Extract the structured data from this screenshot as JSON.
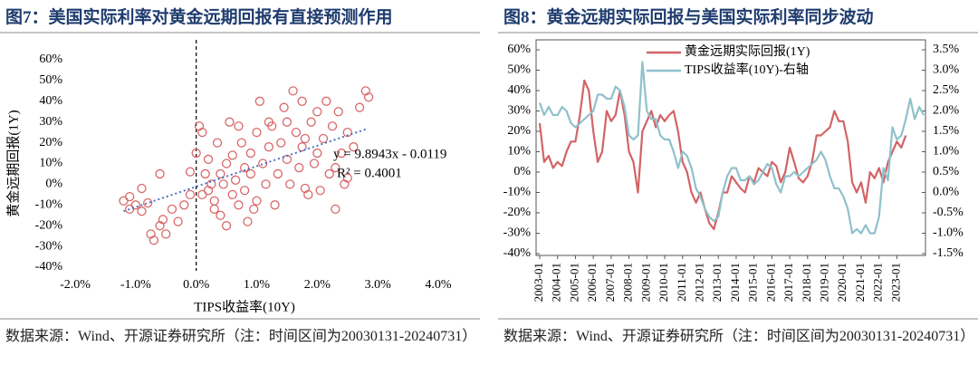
{
  "chart_data": [
    {
      "type": "scatter",
      "title": "图7：美国实际利率对黄金远期回报有直接预测作用",
      "xlabel": "TIPS收益率(10Y)",
      "ylabel": "黄金远期回报(1Y)",
      "color": "#d9686a",
      "x": [
        -1.2,
        -1.1,
        -1.0,
        -0.9,
        -1.1,
        -0.8,
        -0.7,
        -0.75,
        -0.6,
        -0.55,
        -0.5,
        -0.9,
        -0.6,
        -0.4,
        -0.2,
        -0.1,
        -0.1,
        0.0,
        0.05,
        0.1,
        0.15,
        0.2,
        0.2,
        0.3,
        0.3,
        0.35,
        0.4,
        0.4,
        0.45,
        0.5,
        0.5,
        0.55,
        0.6,
        0.6,
        0.65,
        0.7,
        0.75,
        0.8,
        0.8,
        0.85,
        0.9,
        0.9,
        1.0,
        1.0,
        1.05,
        1.1,
        1.15,
        1.2,
        1.25,
        1.3,
        1.35,
        1.4,
        1.5,
        1.5,
        1.55,
        1.6,
        1.65,
        1.7,
        1.75,
        1.75,
        1.8,
        1.85,
        1.9,
        1.95,
        2.0,
        2.0,
        2.05,
        2.1,
        2.15,
        2.2,
        2.25,
        2.3,
        2.35,
        2.4,
        2.45,
        2.5,
        2.5,
        2.6,
        2.7,
        2.8,
        2.85,
        -0.3,
        0.1,
        0.25,
        0.7,
        1.2,
        1.8,
        2.3,
        1.45,
        0.95
      ],
      "values": [
        -8,
        -12,
        -10,
        -13,
        -6,
        -9,
        -27,
        -24,
        -20,
        -17,
        -24,
        -2,
        5,
        -12,
        -10,
        -5,
        6,
        15,
        28,
        25,
        5,
        -3,
        12,
        -8,
        -12,
        20,
        5,
        -15,
        0,
        10,
        -20,
        30,
        14,
        -5,
        2,
        -10,
        20,
        8,
        -3,
        -18,
        15,
        5,
        25,
        -8,
        40,
        10,
        0,
        18,
        28,
        -10,
        5,
        20,
        12,
        30,
        0,
        45,
        25,
        8,
        40,
        18,
        22,
        -5,
        30,
        10,
        35,
        15,
        -3,
        22,
        40,
        5,
        28,
        -12,
        35,
        15,
        0,
        25,
        3,
        18,
        37,
        45,
        42,
        -18,
        -5,
        0,
        28,
        30,
        -2,
        8,
        37,
        -12
      ],
      "trendline": {
        "x": [
          -1.2,
          2.8
        ],
        "values": [
          -13,
          26.5
        ]
      },
      "annotations": [
        "y = 9.8943x - 0.0119",
        "R² = 0.4001"
      ],
      "xlim": [
        -2,
        4
      ],
      "xticks": [
        {
          "value": -2,
          "label": "-2.0%"
        },
        {
          "value": -1,
          "label": "-1.0%"
        },
        {
          "value": 0,
          "label": "0.0%"
        },
        {
          "value": 1,
          "label": "1.0%"
        },
        {
          "value": 2,
          "label": "2.0%"
        },
        {
          "value": 3,
          "label": "3.0%"
        },
        {
          "value": 4,
          "label": "4.0%"
        }
      ],
      "ylim": [
        -40,
        60
      ],
      "yticks": [
        {
          "value": -40,
          "label": "-40%"
        },
        {
          "value": -30,
          "label": "-30%"
        },
        {
          "value": -20,
          "label": "-20%"
        },
        {
          "value": -10,
          "label": "-10%"
        },
        {
          "value": 0,
          "label": "0%"
        },
        {
          "value": 10,
          "label": "10%"
        },
        {
          "value": 20,
          "label": "20%"
        },
        {
          "value": 30,
          "label": "30%"
        },
        {
          "value": 40,
          "label": "40%"
        },
        {
          "value": 50,
          "label": "50%"
        },
        {
          "value": 60,
          "label": "60%"
        }
      ],
      "source": "数据来源：Wind、开源证券研究所（注：时间区间为20030131-20240731）"
    },
    {
      "type": "line",
      "title": "图8：黄金远期实际回报与美国实际利率同步波动",
      "legend": "upper left",
      "x": [
        "2003-01",
        "2003-04",
        "2003-07",
        "2003-10",
        "2004-01",
        "2004-04",
        "2004-07",
        "2004-10",
        "2005-01",
        "2005-04",
        "2005-07",
        "2005-10",
        "2006-01",
        "2006-04",
        "2006-07",
        "2006-10",
        "2007-01",
        "2007-04",
        "2007-07",
        "2007-10",
        "2008-01",
        "2008-04",
        "2008-07",
        "2008-10",
        "2009-01",
        "2009-04",
        "2009-07",
        "2009-10",
        "2010-01",
        "2010-04",
        "2010-07",
        "2010-10",
        "2011-01",
        "2011-04",
        "2011-07",
        "2011-10",
        "2012-01",
        "2012-04",
        "2012-07",
        "2012-10",
        "2013-01",
        "2013-04",
        "2013-07",
        "2013-10",
        "2014-01",
        "2014-04",
        "2014-07",
        "2014-10",
        "2015-01",
        "2015-04",
        "2015-07",
        "2015-10",
        "2016-01",
        "2016-04",
        "2016-07",
        "2016-10",
        "2017-01",
        "2017-04",
        "2017-07",
        "2017-10",
        "2018-01",
        "2018-04",
        "2018-07",
        "2018-10",
        "2019-01",
        "2019-04",
        "2019-07",
        "2019-10",
        "2020-01",
        "2020-04",
        "2020-07",
        "2020-10",
        "2021-01",
        "2021-04",
        "2021-07",
        "2021-10",
        "2022-01",
        "2022-04",
        "2022-07",
        "2022-10",
        "2023-01",
        "2023-04",
        "2023-07",
        "2023-10",
        "2024-01",
        "2024-04",
        "2024-07"
      ],
      "series": [
        {
          "name": "黄金远期实际回报(1Y)",
          "color": "#d26466",
          "values": [
            24,
            5,
            8,
            2,
            5,
            3,
            10,
            15,
            15,
            28,
            45,
            40,
            20,
            5,
            10,
            30,
            25,
            28,
            40,
            28,
            10,
            5,
            -10,
            20,
            25,
            30,
            22,
            28,
            25,
            28,
            30,
            20,
            5,
            0,
            -10,
            -15,
            -10,
            -18,
            -25,
            -28,
            -20,
            -10,
            -10,
            -2,
            -5,
            -8,
            -10,
            -2,
            -5,
            2,
            0,
            -2,
            5,
            3,
            -5,
            0,
            12,
            5,
            -3,
            -5,
            -2,
            5,
            18,
            18,
            20,
            22,
            30,
            25,
            25,
            15,
            -5,
            -10,
            -5,
            -15,
            0,
            -3,
            2,
            -5,
            5,
            10,
            15,
            12,
            18,
            null,
            null,
            null,
            null
          ]
        },
        {
          "name": "TIPS收益率(10Y)-右轴",
          "color": "#8fc1cc",
          "axis": "y2",
          "values": [
            2.2,
            1.9,
            2.1,
            1.9,
            1.9,
            2.1,
            2.0,
            1.7,
            1.6,
            1.7,
            1.8,
            1.9,
            2.0,
            2.4,
            2.4,
            2.3,
            2.3,
            2.6,
            2.5,
            2.1,
            1.4,
            1.3,
            1.4,
            3.2,
            2.0,
            1.8,
            1.8,
            1.4,
            1.3,
            1.3,
            1.0,
            0.6,
            1.0,
            0.9,
            0.6,
            0.1,
            -0.1,
            -0.4,
            -0.6,
            -0.7,
            -0.6,
            0.0,
            0.4,
            0.6,
            0.6,
            0.3,
            0.3,
            0.4,
            0.2,
            0.3,
            0.5,
            0.7,
            0.6,
            0.2,
            0.0,
            0.4,
            0.4,
            0.5,
            0.4,
            0.5,
            0.6,
            0.7,
            0.8,
            1.0,
            0.8,
            0.4,
            0.1,
            0.1,
            -0.1,
            -0.4,
            -1.0,
            -0.9,
            -1.0,
            -0.8,
            -1.0,
            -1.0,
            -0.6,
            0.6,
            0.3,
            1.6,
            1.3,
            1.4,
            1.8,
            2.3,
            1.8,
            2.1,
            1.9
          ]
        }
      ],
      "xlim": [
        "2003-01",
        "2024-07"
      ],
      "xticks": [
        "2003-01",
        "2004-01",
        "2005-01",
        "2006-01",
        "2007-01",
        "2008-01",
        "2009-01",
        "2010-01",
        "2011-01",
        "2012-01",
        "2013-01",
        "2014-01",
        "2015-01",
        "2016-01",
        "2017-01",
        "2018-01",
        "2019-01",
        "2020-01",
        "2021-01",
        "2022-01",
        "2023-01"
      ],
      "ylim": [
        -40,
        60
      ],
      "yticks": [
        {
          "value": -40,
          "label": "-40%"
        },
        {
          "value": -30,
          "label": "-30%"
        },
        {
          "value": -20,
          "label": "-20%"
        },
        {
          "value": -10,
          "label": "-10%"
        },
        {
          "value": 0,
          "label": "0%"
        },
        {
          "value": 10,
          "label": "10%"
        },
        {
          "value": 20,
          "label": "20%"
        },
        {
          "value": 30,
          "label": "30%"
        },
        {
          "value": 40,
          "label": "40%"
        },
        {
          "value": 50,
          "label": "50%"
        },
        {
          "value": 60,
          "label": "60%"
        }
      ],
      "y2lim": [
        -1.5,
        3.5
      ],
      "y2ticks": [
        {
          "value": -1.5,
          "label": "-1.5%"
        },
        {
          "value": -1.0,
          "label": "-1.0%"
        },
        {
          "value": -0.5,
          "label": "-0.5%"
        },
        {
          "value": 0,
          "label": "0.0%"
        },
        {
          "value": 0.5,
          "label": "0.5%"
        },
        {
          "value": 1.0,
          "label": "1.0%"
        },
        {
          "value": 1.5,
          "label": "1.5%"
        },
        {
          "value": 2.0,
          "label": "2.0%"
        },
        {
          "value": 2.5,
          "label": "2.5%"
        },
        {
          "value": 3.0,
          "label": "3.0%"
        },
        {
          "value": 3.5,
          "label": "3.5%"
        }
      ],
      "source": "数据来源：Wind、开源证券研究所（注：时间区间为20030131-20240731）"
    }
  ]
}
